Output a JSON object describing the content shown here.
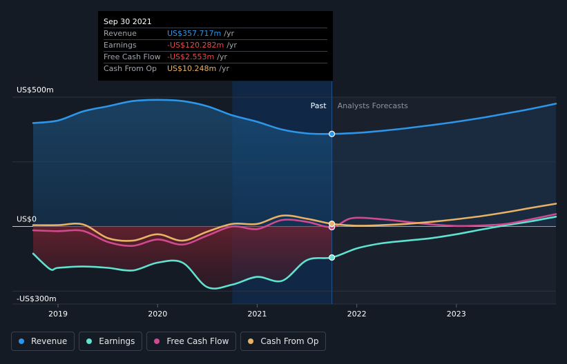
{
  "chart_data": {
    "type": "area",
    "x_axis": {
      "ticks": [
        "2019",
        "2020",
        "2021",
        "2022",
        "2023"
      ]
    },
    "y_axis": {
      "labels": [
        "US$500m",
        "US$0",
        "-US$300m"
      ],
      "ylim": [
        -300,
        500
      ]
    },
    "past_label": "Past",
    "forecast_label": "Analysts Forecasts",
    "grid": true,
    "legend_placement": "bottom-left",
    "colors": {
      "Revenue": "#2d96e8",
      "Earnings": "#5fe3d0",
      "Free Cash Flow": "#d14a8f",
      "Cash From Op": "#e8b266",
      "past_highlight": "#0f2d52"
    },
    "series": [
      {
        "name": "Revenue",
        "x": [
          2018.75,
          2019.0,
          2019.25,
          2019.5,
          2019.75,
          2020.0,
          2020.25,
          2020.5,
          2020.75,
          2021.0,
          2021.25,
          2021.5,
          2021.75,
          2022.0,
          2022.25,
          2022.5,
          2022.75,
          2023.0,
          2023.25,
          2023.5,
          2023.75,
          2024.0
        ],
        "values": [
          400,
          410,
          445,
          465,
          485,
          490,
          485,
          465,
          430,
          405,
          375,
          360,
          358,
          362,
          370,
          380,
          392,
          405,
          420,
          437,
          455,
          475
        ]
      },
      {
        "name": "Earnings",
        "x": [
          2018.75,
          2018.92,
          2019.0,
          2019.25,
          2019.5,
          2019.75,
          2020.0,
          2020.25,
          2020.5,
          2020.75,
          2021.0,
          2021.25,
          2021.5,
          2021.75,
          2022.0,
          2022.25,
          2022.5,
          2022.75,
          2023.0,
          2023.25,
          2023.5,
          2023.75,
          2024.0
        ],
        "values": [
          -105,
          -165,
          -160,
          -155,
          -160,
          -170,
          -140,
          -140,
          -235,
          -225,
          -195,
          -210,
          -130,
          -120,
          -85,
          -65,
          -55,
          -45,
          -30,
          -12,
          5,
          20,
          38
        ]
      },
      {
        "name": "Free Cash Flow",
        "x": [
          2018.75,
          2019.0,
          2019.25,
          2019.5,
          2019.75,
          2020.0,
          2020.25,
          2020.5,
          2020.75,
          2021.0,
          2021.25,
          2021.5,
          2021.75,
          2021.95,
          2022.25,
          2022.5,
          2022.75,
          2023.0,
          2023.25,
          2023.5,
          2023.75,
          2024.0
        ],
        "values": [
          -15,
          -18,
          -17,
          -60,
          -75,
          -50,
          -70,
          -35,
          0,
          -10,
          25,
          18,
          -2.553,
          32,
          28,
          18,
          8,
          2,
          4,
          10,
          28,
          48
        ]
      },
      {
        "name": "Cash From Op",
        "x": [
          2018.75,
          2019.0,
          2019.25,
          2019.5,
          2019.75,
          2020.0,
          2020.25,
          2020.5,
          2020.75,
          2021.0,
          2021.25,
          2021.5,
          2021.75,
          2022.0,
          2022.25,
          2022.5,
          2022.75,
          2023.0,
          2023.25,
          2023.5,
          2023.75,
          2024.0
        ],
        "values": [
          5,
          5,
          8,
          -45,
          -55,
          -30,
          -55,
          -20,
          10,
          10,
          42,
          30,
          10.248,
          3,
          5,
          10,
          18,
          28,
          40,
          55,
          72,
          88
        ]
      }
    ],
    "highlight_x": 2021.75,
    "highlight_start_x": 2020.75,
    "tooltip": {
      "date": "Sep 30 2021",
      "unit": "/yr",
      "rows": [
        {
          "name": "Revenue",
          "value": "US$357.717m",
          "color": "#2d96e8"
        },
        {
          "name": "Earnings",
          "value": "-US$120.282m",
          "color": "#e64b4b"
        },
        {
          "name": "Free Cash Flow",
          "value": "-US$2.553m",
          "color": "#e64b4b"
        },
        {
          "name": "Cash From Op",
          "value": "US$10.248m",
          "color": "#e8b266"
        }
      ]
    }
  },
  "legend": [
    {
      "label": "Revenue",
      "color": "#2d96e8"
    },
    {
      "label": "Earnings",
      "color": "#5fe3d0"
    },
    {
      "label": "Free Cash Flow",
      "color": "#d14a8f"
    },
    {
      "label": "Cash From Op",
      "color": "#e8b266"
    }
  ]
}
